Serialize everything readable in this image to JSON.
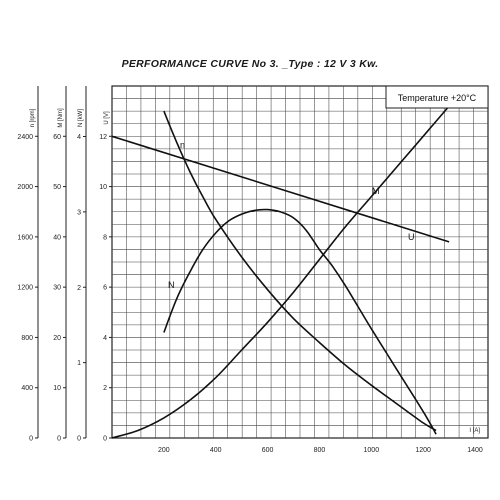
{
  "chart_data": {
    "type": "line",
    "title": "PERFORMANCE CURVE No 3. _Type : 12 V 3 Kw.",
    "annotation": "Temperature +20°C",
    "xlabel": "I [A]",
    "x_ticks": [
      200,
      400,
      600,
      800,
      1000,
      1200,
      1400
    ],
    "xlim": [
      0,
      1450
    ],
    "axes": [
      {
        "label": "n [rpm]",
        "ticks": [
          0,
          400,
          800,
          1200,
          1600,
          2000,
          2400
        ],
        "range": [
          0,
          2800
        ]
      },
      {
        "label": "M [Nm]",
        "ticks": [
          0,
          10,
          20,
          30,
          40,
          50,
          60
        ],
        "range": [
          0,
          70
        ]
      },
      {
        "label": "N [kW]",
        "ticks": [
          0,
          1,
          2,
          3,
          4
        ],
        "range": [
          0,
          4.67
        ]
      },
      {
        "label": "U [V]",
        "ticks": [
          0,
          2,
          4,
          6,
          8,
          10,
          12
        ],
        "range": [
          0,
          14
        ]
      }
    ],
    "series": [
      {
        "name": "n",
        "axis": "n [rpm]",
        "x": [
          200,
          250,
          300,
          350,
          400,
          500,
          600,
          700,
          800,
          900,
          1000,
          1100,
          1200,
          1250
        ],
        "y": [
          2600,
          2350,
          2120,
          1920,
          1740,
          1440,
          1180,
          950,
          760,
          580,
          420,
          270,
          120,
          60
        ]
      },
      {
        "name": "M",
        "axis": "M [Nm]",
        "x": [
          0,
          100,
          200,
          300,
          400,
          500,
          600,
          700,
          800,
          900,
          1000,
          1100,
          1200,
          1300
        ],
        "y": [
          0,
          1.5,
          4,
          7.5,
          12,
          17.5,
          23,
          29,
          35.5,
          42,
          48,
          54,
          60,
          66
        ]
      },
      {
        "name": "N",
        "axis": "N [kW]",
        "x": [
          200,
          250,
          300,
          350,
          400,
          450,
          500,
          550,
          600,
          650,
          700,
          750,
          800,
          850,
          900,
          1000,
          1100,
          1200,
          1250
        ],
        "y": [
          1.4,
          1.85,
          2.2,
          2.5,
          2.72,
          2.88,
          2.97,
          3.02,
          3.03,
          3.0,
          2.92,
          2.75,
          2.5,
          2.28,
          2.02,
          1.45,
          0.9,
          0.35,
          0.05
        ]
      },
      {
        "name": "U",
        "axis": "U [V]",
        "x": [
          0,
          1300
        ],
        "y": [
          12,
          7.8
        ]
      }
    ]
  }
}
